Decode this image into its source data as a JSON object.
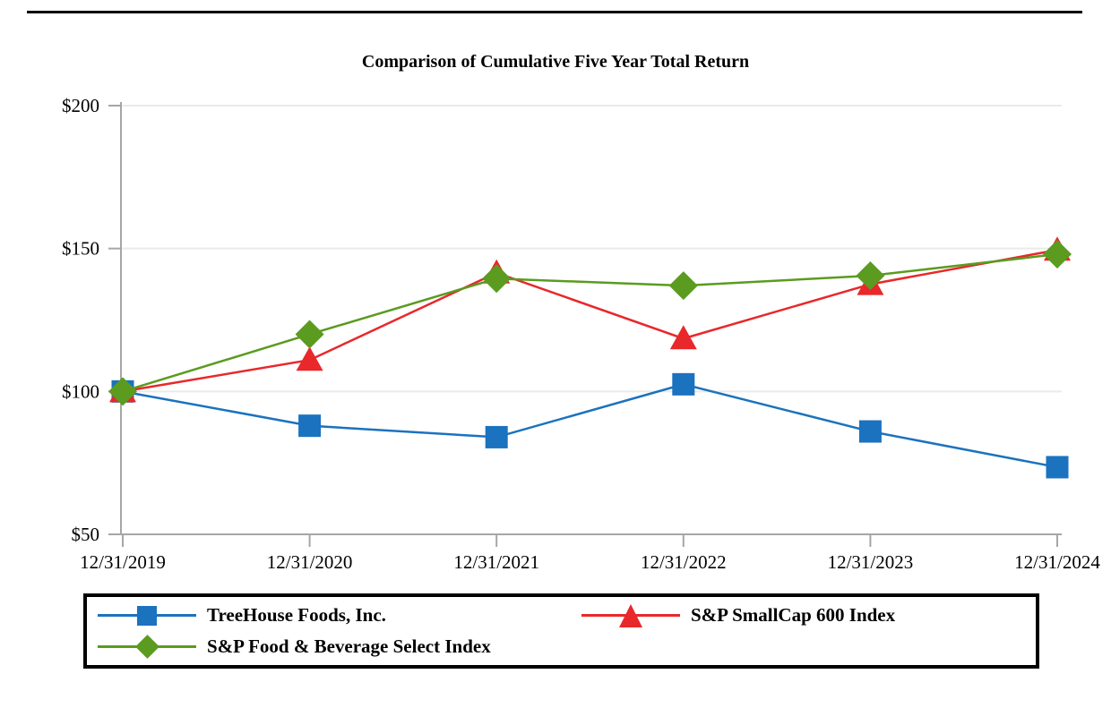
{
  "title": "Comparison of Cumulative Five Year Total Return",
  "chart_data": {
    "type": "line",
    "title": "Comparison of Cumulative Five Year Total Return",
    "categories": [
      "12/31/2019",
      "12/31/2020",
      "12/31/2021",
      "12/31/2022",
      "12/31/2023",
      "12/31/2024"
    ],
    "series": [
      {
        "name": "TreeHouse Foods, Inc.",
        "marker": "square",
        "color": "#1B72BE",
        "values": [
          100,
          88,
          84,
          102.5,
          86,
          73.5
        ]
      },
      {
        "name": "S&P SmallCap 600 Index",
        "marker": "triangle",
        "color": "#E8282B",
        "values": [
          100,
          111,
          141.5,
          118.5,
          137.5,
          149.5
        ]
      },
      {
        "name": "S&P Food & Beverage Select Index",
        "marker": "diamond",
        "color": "#5B9B20",
        "values": [
          100,
          120,
          139.5,
          137,
          140.5,
          148
        ]
      }
    ],
    "yticks": [
      {
        "value": 200,
        "label": "$200"
      },
      {
        "value": 150,
        "label": "$150"
      },
      {
        "value": 100,
        "label": "$100"
      },
      {
        "value": 50,
        "label": "$50"
      }
    ],
    "ylim": [
      50,
      200
    ],
    "grid": "horizontal",
    "legend_position": "bottom-boxed",
    "axis_color": "#A6A6A6",
    "gridline_color": "#EAEAEA"
  }
}
